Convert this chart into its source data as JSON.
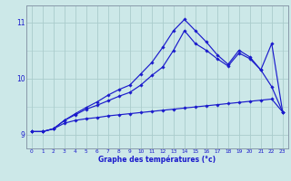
{
  "xlabel": "Graphe des températures (°c)",
  "bg_color": "#cce8e8",
  "grid_color": "#aacccc",
  "line_color": "#1a1acc",
  "x_ticks": [
    0,
    1,
    2,
    3,
    4,
    5,
    6,
    7,
    8,
    9,
    10,
    11,
    12,
    13,
    14,
    15,
    16,
    17,
    18,
    19,
    20,
    21,
    22,
    23
  ],
  "ylim": [
    8.75,
    11.3
  ],
  "xlim": [
    -0.5,
    23.5
  ],
  "yticks": [
    9,
    10,
    11
  ],
  "series": [
    [
      9.05,
      9.05,
      9.1,
      9.2,
      9.25,
      9.28,
      9.3,
      9.33,
      9.35,
      9.37,
      9.39,
      9.41,
      9.43,
      9.45,
      9.47,
      9.49,
      9.51,
      9.53,
      9.55,
      9.57,
      9.59,
      9.61,
      9.63,
      9.4
    ],
    [
      9.05,
      9.05,
      9.1,
      9.25,
      9.35,
      9.45,
      9.52,
      9.6,
      9.68,
      9.75,
      9.88,
      10.05,
      10.2,
      10.5,
      10.85,
      10.62,
      10.5,
      10.35,
      10.22,
      10.45,
      10.35,
      10.15,
      9.85,
      9.4
    ],
    [
      9.05,
      9.05,
      9.1,
      9.25,
      9.37,
      9.48,
      9.58,
      9.7,
      9.8,
      9.88,
      10.08,
      10.28,
      10.55,
      10.85,
      11.05,
      10.85,
      10.65,
      10.42,
      10.25,
      10.5,
      10.38,
      10.15,
      10.62,
      9.4
    ]
  ]
}
